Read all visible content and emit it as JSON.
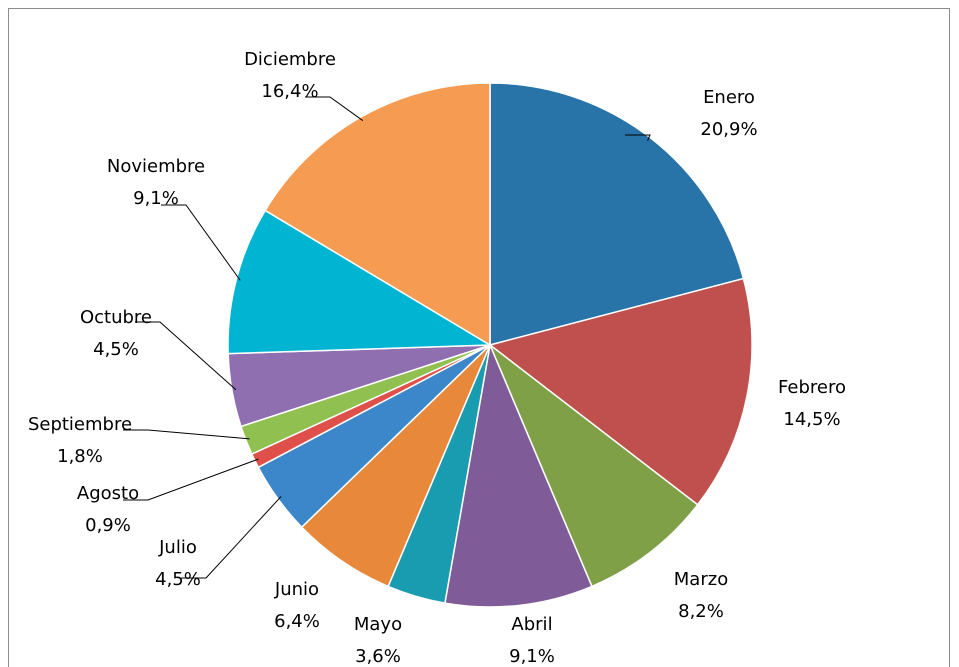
{
  "chart_data": {
    "type": "pie",
    "categories": [
      "Enero",
      "Febrero",
      "Marzo",
      "Abril",
      "Mayo",
      "Junio",
      "Julio",
      "Agosto",
      "Septiembre",
      "Octubre",
      "Noviembre",
      "Diciembre"
    ],
    "values": [
      20.9,
      14.5,
      8.2,
      9.1,
      3.6,
      6.4,
      4.5,
      0.9,
      1.8,
      4.5,
      9.1,
      16.4
    ],
    "value_labels": [
      "20,9%",
      "14,5%",
      "8,2%",
      "9,1%",
      "3,6%",
      "6,4%",
      "4,5%",
      "0,9%",
      "1,8%",
      "4,5%",
      "9,1%",
      "16,4%"
    ],
    "colors": [
      "#2874a9",
      "#c0504d",
      "#7fa046",
      "#7f5b98",
      "#1a9cb0",
      "#e8883a",
      "#3c87c9",
      "#e0504a",
      "#8fc050",
      "#8f6fb0",
      "#00b4d2",
      "#f59c52"
    ]
  }
}
